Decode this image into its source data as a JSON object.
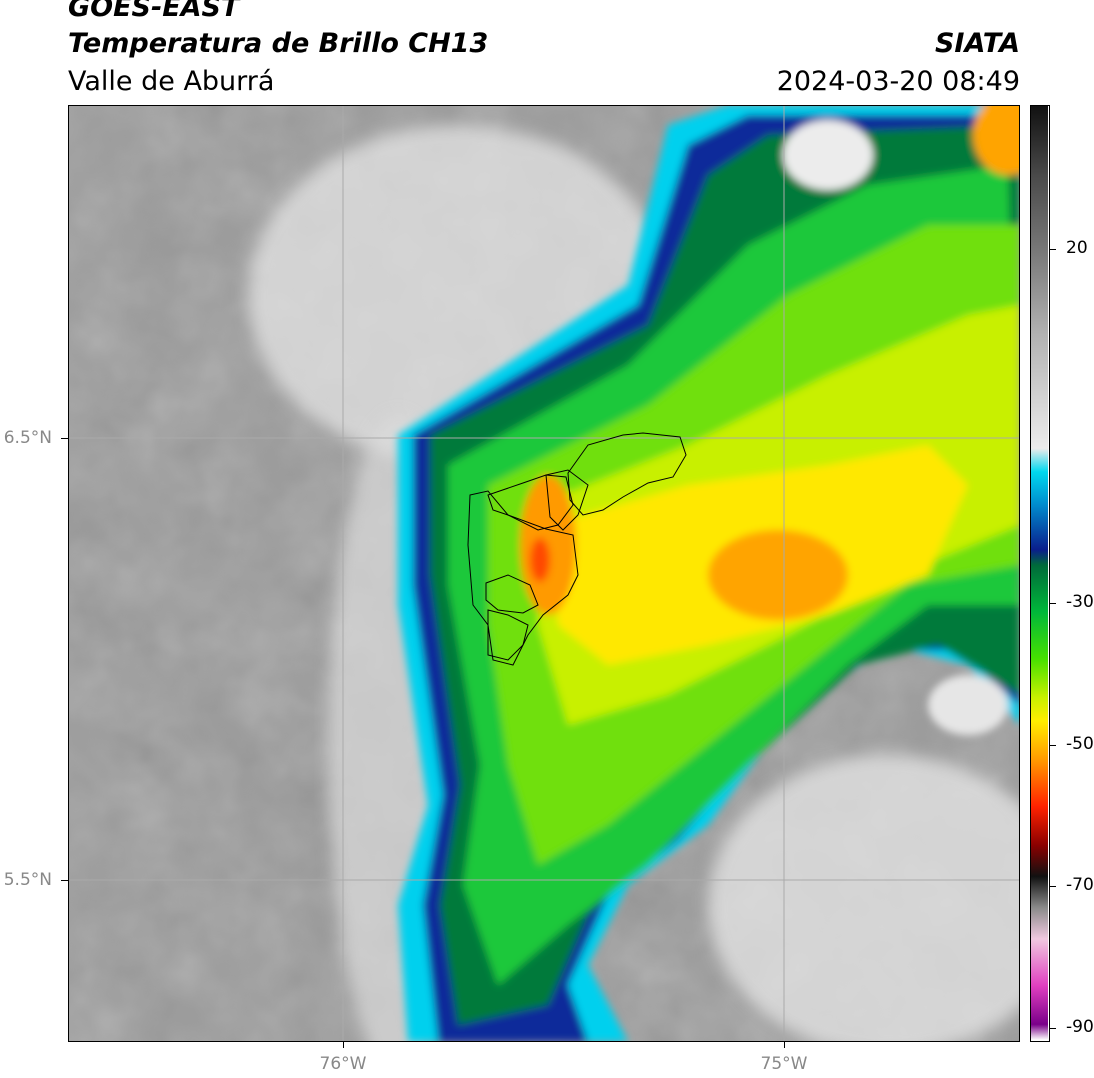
{
  "header": {
    "satellite": "GOES-EAST",
    "product": "Temperatura de Brillo CH13",
    "region": "Valle de Aburrá",
    "organization": "SIATA",
    "timestamp": "2024-03-20 08:49"
  },
  "axes": {
    "lat_labels": [
      "6.5°N",
      "5.5°N"
    ],
    "lon_labels": [
      "76°W",
      "75°W"
    ]
  },
  "colorbar": {
    "tick_labels": [
      "20",
      "-30",
      "-50",
      "-70",
      "-90"
    ],
    "stops": [
      {
        "value": 29,
        "color": "#111111"
      },
      {
        "value": 20,
        "color": "#4a4a4a"
      },
      {
        "value": 10,
        "color": "#7a7a7a"
      },
      {
        "value": 0,
        "color": "#b0b0b0"
      },
      {
        "value": -15,
        "color": "#ececec"
      },
      {
        "value": -18,
        "color": "#00d8ee"
      },
      {
        "value": -22,
        "color": "#0090d0"
      },
      {
        "value": -28,
        "color": "#0a1e8c"
      },
      {
        "value": -30,
        "color": "#006a3a"
      },
      {
        "value": -36,
        "color": "#00b83a"
      },
      {
        "value": -42,
        "color": "#46e000"
      },
      {
        "value": -47,
        "color": "#c8f000"
      },
      {
        "value": -50,
        "color": "#ffee00"
      },
      {
        "value": -55,
        "color": "#ff9a00"
      },
      {
        "value": -61,
        "color": "#ff2200"
      },
      {
        "value": -66,
        "color": "#8a0000"
      },
      {
        "value": -70,
        "color": "#111111"
      },
      {
        "value": -74,
        "color": "#8a8a8a"
      },
      {
        "value": -78,
        "color": "#f0c8e0"
      },
      {
        "value": -84,
        "color": "#e040c0"
      },
      {
        "value": -89,
        "color": "#7a008a"
      },
      {
        "value": -91,
        "color": "#ffffff"
      }
    ]
  }
}
